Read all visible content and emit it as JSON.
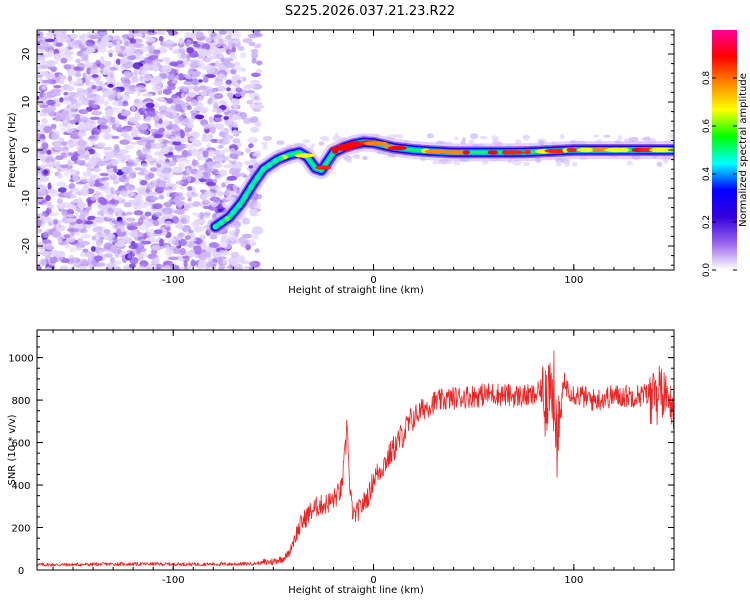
{
  "title": "S225.2026.037.21.23.R22",
  "chart_data": [
    {
      "type": "heatmap",
      "name": "spectrogram",
      "xlabel": "Height of straight line (km)",
      "ylabel": "Frequency (Hz)",
      "xlim": [
        -168,
        150
      ],
      "ylim": [
        -25,
        25
      ],
      "x_ticks": [
        -100,
        0,
        100
      ],
      "x_tick_labels": [
        "-100",
        "0",
        "100"
      ],
      "y_ticks": [
        -20,
        -10,
        0,
        10,
        20
      ],
      "y_tick_labels": [
        "-20",
        "-10",
        "0",
        "10",
        "20"
      ],
      "noise_region_x": [
        -168,
        -57
      ],
      "ridge": {
        "x": [
          -79,
          -72,
          -66,
          -60,
          -55,
          -48,
          -42,
          -37,
          -33,
          -29,
          -26,
          -24,
          -20,
          -15,
          -10,
          -5,
          0,
          10,
          20,
          30,
          40,
          50,
          60,
          70,
          80,
          90,
          100,
          110,
          120,
          130,
          140,
          148
        ],
        "freq": [
          -16,
          -14,
          -11,
          -7,
          -4,
          -2,
          -1,
          -0.5,
          -1.5,
          -3.8,
          -4.2,
          -3,
          -0.5,
          0.5,
          1.2,
          1.6,
          1.5,
          0.5,
          0,
          -0.3,
          -0.5,
          -0.5,
          -0.5,
          -0.5,
          -0.4,
          -0.2,
          0,
          0,
          0,
          0,
          0,
          0
        ]
      },
      "colorbar": {
        "label": "Normalized spectral amplitude",
        "ticks": [
          0.0,
          0.2,
          0.4,
          0.6,
          0.8
        ],
        "tick_labels": [
          "0.0",
          "0.2",
          "0.4",
          "0.6",
          "0.8"
        ],
        "range": [
          0,
          1
        ],
        "colormap": [
          "#ffffff",
          "#9966ee",
          "#3300dd",
          "#0000ff",
          "#00ffff",
          "#00ff00",
          "#ffff00",
          "#ff8800",
          "#ff0000",
          "#ff0099"
        ]
      }
    },
    {
      "type": "line",
      "name": "snr",
      "xlabel": "Height of straight line (km)",
      "ylabel": "SNR (10 * v/v)",
      "xlim": [
        -168,
        150
      ],
      "ylim": [
        0,
        1130
      ],
      "x_ticks": [
        -100,
        0,
        100
      ],
      "x_tick_labels": [
        "-100",
        "0",
        "100"
      ],
      "y_ticks": [
        0,
        200,
        400,
        600,
        800,
        1000
      ],
      "y_tick_labels": [
        "0",
        "200",
        "400",
        "600",
        "800",
        "1000"
      ],
      "line_color": "#ee2222",
      "series": [
        {
          "name": "SNR",
          "x": [
            -168,
            -150,
            -130,
            -110,
            -90,
            -70,
            -60,
            -55,
            -50,
            -45,
            -42,
            -40,
            -36,
            -32,
            -28,
            -24,
            -20,
            -16,
            -14,
            -13,
            -12,
            -10,
            -6,
            -2,
            0,
            4,
            8,
            12,
            16,
            20,
            25,
            30,
            40,
            50,
            60,
            70,
            80,
            85,
            90,
            92,
            95,
            100,
            110,
            120,
            130,
            140,
            145,
            150
          ],
          "values": [
            25,
            25,
            28,
            28,
            27,
            28,
            30,
            35,
            40,
            55,
            80,
            140,
            220,
            270,
            300,
            310,
            330,
            380,
            560,
            720,
            380,
            250,
            300,
            360,
            430,
            480,
            540,
            600,
            660,
            720,
            760,
            790,
            810,
            820,
            830,
            820,
            820,
            850,
            830,
            600,
            880,
            830,
            800,
            820,
            820,
            830,
            840,
            800
          ]
        }
      ]
    }
  ]
}
